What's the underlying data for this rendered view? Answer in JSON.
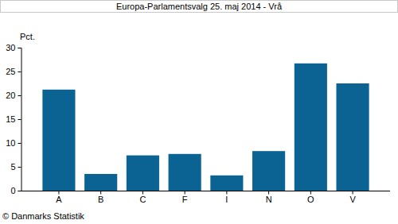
{
  "chart_data": {
    "type": "bar",
    "title": "Europa-Parlamentsvalg 25. maj 2014 - Vrå",
    "y_label": "Pct.",
    "source": "© Danmarks Statistik",
    "categories": [
      "A",
      "B",
      "C",
      "F",
      "I",
      "N",
      "O",
      "V"
    ],
    "values": [
      21.2,
      3.5,
      7.4,
      7.7,
      3.2,
      8.3,
      26.7,
      22.5
    ],
    "color": "#0b6394",
    "ylim": [
      0,
      30
    ],
    "yticks": [
      0,
      5,
      10,
      15,
      20,
      25,
      30
    ],
    "grid": false
  }
}
